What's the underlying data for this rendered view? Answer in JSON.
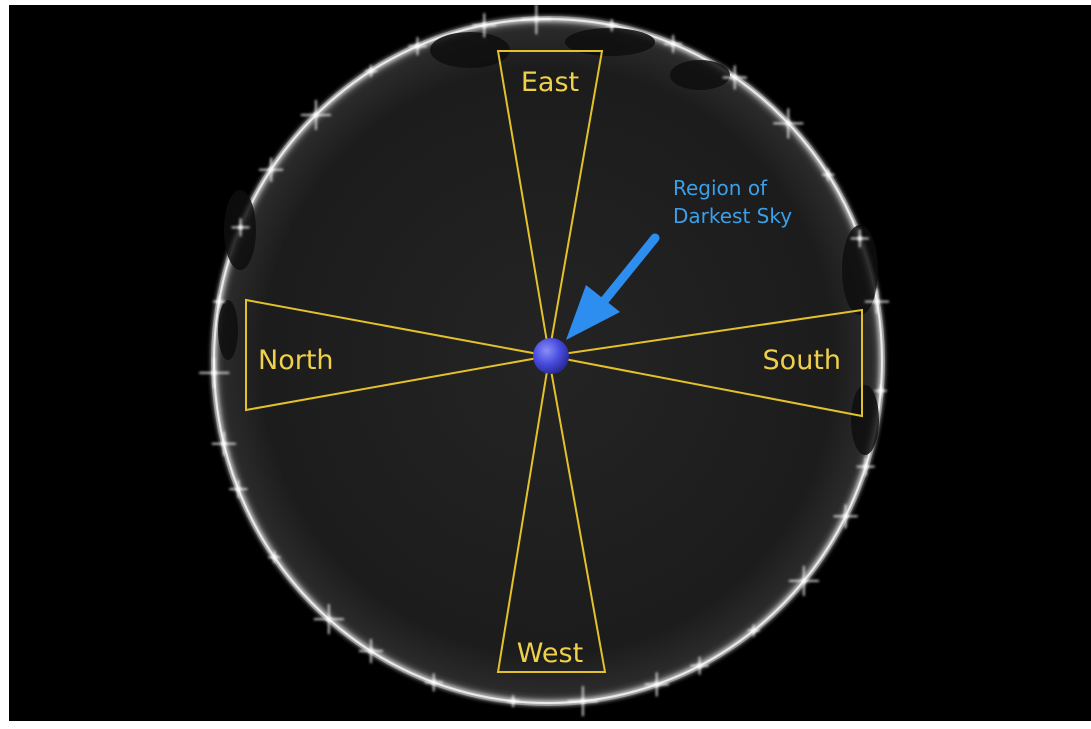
{
  "labels": {
    "east": "East",
    "north": "North",
    "south": "South",
    "west": "West"
  },
  "callout": {
    "line1": "Region of",
    "line2": "Darkest Sky"
  },
  "colors": {
    "background": "#000000",
    "sky": "#1b1b1b",
    "sector_outline": "#e3c12c",
    "label_text": "#efd04a",
    "callout_text": "#3aa0ea",
    "arrow": "#2e8ef0",
    "zenith_marker": "#4a4ee0",
    "horizon_glow": "#f2f2f2"
  },
  "icons": {
    "zenith": "zenith-marker-icon",
    "arrow": "arrow-pointer-icon"
  }
}
